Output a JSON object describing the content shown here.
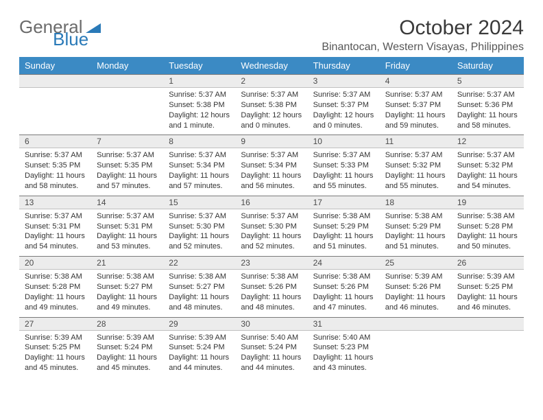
{
  "brand": {
    "part1": "General",
    "part2": "Blue"
  },
  "title": "October 2024",
  "location": "Binantocan, Western Visayas, Philippines",
  "styling": {
    "header_bg": "#3b8ac4",
    "header_text": "#ffffff",
    "daynum_bg": "#ececec",
    "daynum_border_top": "#7a7a7a",
    "daynum_border_bottom": "#c0c0c0",
    "page_bg": "#ffffff",
    "body_text": "#333333",
    "title_fontsize": 30,
    "location_fontsize": 16,
    "weekday_fontsize": 13,
    "daynum_fontsize": 12,
    "cell_fontsize": 11
  },
  "weekdays": [
    "Sunday",
    "Monday",
    "Tuesday",
    "Wednesday",
    "Thursday",
    "Friday",
    "Saturday"
  ],
  "weeks": [
    [
      {
        "n": "",
        "sr": "",
        "ss": "",
        "dl": ""
      },
      {
        "n": "",
        "sr": "",
        "ss": "",
        "dl": ""
      },
      {
        "n": "1",
        "sr": "Sunrise: 5:37 AM",
        "ss": "Sunset: 5:38 PM",
        "dl": "Daylight: 12 hours and 1 minute."
      },
      {
        "n": "2",
        "sr": "Sunrise: 5:37 AM",
        "ss": "Sunset: 5:38 PM",
        "dl": "Daylight: 12 hours and 0 minutes."
      },
      {
        "n": "3",
        "sr": "Sunrise: 5:37 AM",
        "ss": "Sunset: 5:37 PM",
        "dl": "Daylight: 12 hours and 0 minutes."
      },
      {
        "n": "4",
        "sr": "Sunrise: 5:37 AM",
        "ss": "Sunset: 5:37 PM",
        "dl": "Daylight: 11 hours and 59 minutes."
      },
      {
        "n": "5",
        "sr": "Sunrise: 5:37 AM",
        "ss": "Sunset: 5:36 PM",
        "dl": "Daylight: 11 hours and 58 minutes."
      }
    ],
    [
      {
        "n": "6",
        "sr": "Sunrise: 5:37 AM",
        "ss": "Sunset: 5:35 PM",
        "dl": "Daylight: 11 hours and 58 minutes."
      },
      {
        "n": "7",
        "sr": "Sunrise: 5:37 AM",
        "ss": "Sunset: 5:35 PM",
        "dl": "Daylight: 11 hours and 57 minutes."
      },
      {
        "n": "8",
        "sr": "Sunrise: 5:37 AM",
        "ss": "Sunset: 5:34 PM",
        "dl": "Daylight: 11 hours and 57 minutes."
      },
      {
        "n": "9",
        "sr": "Sunrise: 5:37 AM",
        "ss": "Sunset: 5:34 PM",
        "dl": "Daylight: 11 hours and 56 minutes."
      },
      {
        "n": "10",
        "sr": "Sunrise: 5:37 AM",
        "ss": "Sunset: 5:33 PM",
        "dl": "Daylight: 11 hours and 55 minutes."
      },
      {
        "n": "11",
        "sr": "Sunrise: 5:37 AM",
        "ss": "Sunset: 5:32 PM",
        "dl": "Daylight: 11 hours and 55 minutes."
      },
      {
        "n": "12",
        "sr": "Sunrise: 5:37 AM",
        "ss": "Sunset: 5:32 PM",
        "dl": "Daylight: 11 hours and 54 minutes."
      }
    ],
    [
      {
        "n": "13",
        "sr": "Sunrise: 5:37 AM",
        "ss": "Sunset: 5:31 PM",
        "dl": "Daylight: 11 hours and 54 minutes."
      },
      {
        "n": "14",
        "sr": "Sunrise: 5:37 AM",
        "ss": "Sunset: 5:31 PM",
        "dl": "Daylight: 11 hours and 53 minutes."
      },
      {
        "n": "15",
        "sr": "Sunrise: 5:37 AM",
        "ss": "Sunset: 5:30 PM",
        "dl": "Daylight: 11 hours and 52 minutes."
      },
      {
        "n": "16",
        "sr": "Sunrise: 5:37 AM",
        "ss": "Sunset: 5:30 PM",
        "dl": "Daylight: 11 hours and 52 minutes."
      },
      {
        "n": "17",
        "sr": "Sunrise: 5:38 AM",
        "ss": "Sunset: 5:29 PM",
        "dl": "Daylight: 11 hours and 51 minutes."
      },
      {
        "n": "18",
        "sr": "Sunrise: 5:38 AM",
        "ss": "Sunset: 5:29 PM",
        "dl": "Daylight: 11 hours and 51 minutes."
      },
      {
        "n": "19",
        "sr": "Sunrise: 5:38 AM",
        "ss": "Sunset: 5:28 PM",
        "dl": "Daylight: 11 hours and 50 minutes."
      }
    ],
    [
      {
        "n": "20",
        "sr": "Sunrise: 5:38 AM",
        "ss": "Sunset: 5:28 PM",
        "dl": "Daylight: 11 hours and 49 minutes."
      },
      {
        "n": "21",
        "sr": "Sunrise: 5:38 AM",
        "ss": "Sunset: 5:27 PM",
        "dl": "Daylight: 11 hours and 49 minutes."
      },
      {
        "n": "22",
        "sr": "Sunrise: 5:38 AM",
        "ss": "Sunset: 5:27 PM",
        "dl": "Daylight: 11 hours and 48 minutes."
      },
      {
        "n": "23",
        "sr": "Sunrise: 5:38 AM",
        "ss": "Sunset: 5:26 PM",
        "dl": "Daylight: 11 hours and 48 minutes."
      },
      {
        "n": "24",
        "sr": "Sunrise: 5:38 AM",
        "ss": "Sunset: 5:26 PM",
        "dl": "Daylight: 11 hours and 47 minutes."
      },
      {
        "n": "25",
        "sr": "Sunrise: 5:39 AM",
        "ss": "Sunset: 5:26 PM",
        "dl": "Daylight: 11 hours and 46 minutes."
      },
      {
        "n": "26",
        "sr": "Sunrise: 5:39 AM",
        "ss": "Sunset: 5:25 PM",
        "dl": "Daylight: 11 hours and 46 minutes."
      }
    ],
    [
      {
        "n": "27",
        "sr": "Sunrise: 5:39 AM",
        "ss": "Sunset: 5:25 PM",
        "dl": "Daylight: 11 hours and 45 minutes."
      },
      {
        "n": "28",
        "sr": "Sunrise: 5:39 AM",
        "ss": "Sunset: 5:24 PM",
        "dl": "Daylight: 11 hours and 45 minutes."
      },
      {
        "n": "29",
        "sr": "Sunrise: 5:39 AM",
        "ss": "Sunset: 5:24 PM",
        "dl": "Daylight: 11 hours and 44 minutes."
      },
      {
        "n": "30",
        "sr": "Sunrise: 5:40 AM",
        "ss": "Sunset: 5:24 PM",
        "dl": "Daylight: 11 hours and 44 minutes."
      },
      {
        "n": "31",
        "sr": "Sunrise: 5:40 AM",
        "ss": "Sunset: 5:23 PM",
        "dl": "Daylight: 11 hours and 43 minutes."
      },
      {
        "n": "",
        "sr": "",
        "ss": "",
        "dl": ""
      },
      {
        "n": "",
        "sr": "",
        "ss": "",
        "dl": ""
      }
    ]
  ]
}
